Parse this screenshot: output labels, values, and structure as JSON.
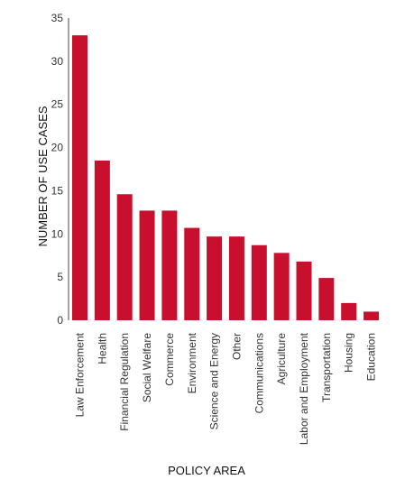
{
  "chart_data": {
    "type": "bar",
    "title": "",
    "xlabel": "POLICY AREA",
    "ylabel": "NUMBER OF USE CASES",
    "ylim": [
      0,
      35
    ],
    "yticks": [
      0,
      5,
      10,
      15,
      20,
      25,
      30,
      35
    ],
    "grid": false,
    "legend": "none",
    "bar_color": "#C8102E",
    "categories": [
      "Law Enforcement",
      "Health",
      "Financial Regulation",
      "Social Welfare",
      "Commerce",
      "Environment",
      "Science and Energy",
      "Other",
      "Communications",
      "Agriculture",
      "Labor and Employment",
      "Transportation",
      "Housing",
      "Education"
    ],
    "values": [
      33,
      18.5,
      14.6,
      12.7,
      12.7,
      10.7,
      9.7,
      9.7,
      8.7,
      7.8,
      6.8,
      4.9,
      2.0,
      1.0
    ]
  }
}
